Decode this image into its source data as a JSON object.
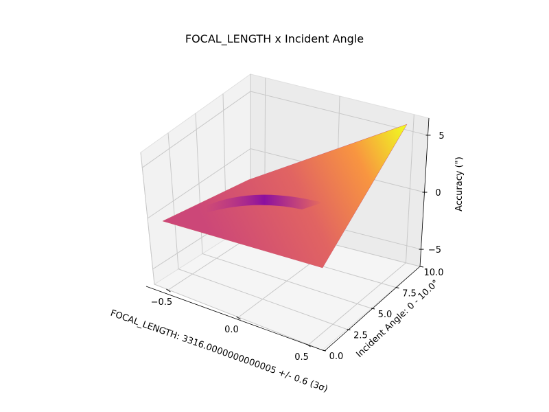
{
  "chart_data": {
    "type": "surface",
    "title": "FOCAL_LENGTH x Incident Angle",
    "xlabel": "FOCAL_LENGTH: 3316.0000000000005 +/- 0.6 (3σ)",
    "ylabel": "Incident Angle: 0 - 10.0°",
    "zlabel": "Accuracy (\")",
    "x_ticks": [
      "−0.5",
      "0.0",
      "0.5"
    ],
    "y_ticks": [
      "0.0",
      "2.5",
      "5.0",
      "7.5",
      "10.0"
    ],
    "z_ticks": [
      "−5",
      "0",
      "5"
    ],
    "xlim": [
      -0.6,
      0.6
    ],
    "ylim": [
      0,
      10
    ],
    "zlim": [
      -6.5,
      6.5
    ],
    "colormap": "plasma",
    "corners": [
      {
        "x": -0.6,
        "y": 0,
        "z": -1.0
      },
      {
        "x": 0.6,
        "y": 0,
        "z": -4.5
      },
      {
        "x": 0.6,
        "y": 10,
        "z": 6.0
      },
      {
        "x": -0.6,
        "y": 10,
        "z": -3.2
      }
    ],
    "grid": true
  }
}
